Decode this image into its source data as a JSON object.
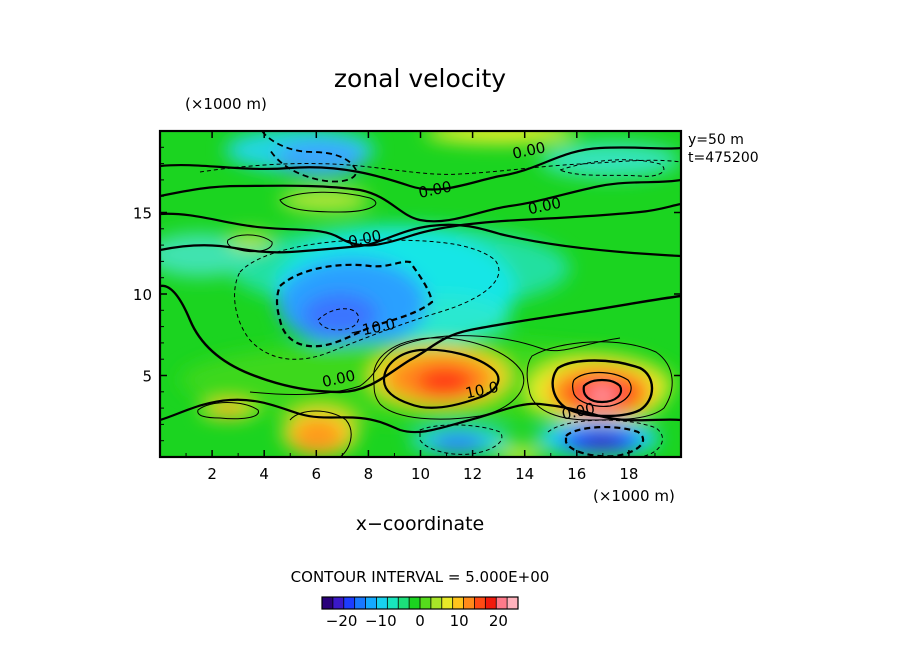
{
  "chart_data": {
    "type": "heatmap",
    "title": "zonal velocity",
    "xlabel": "x−coordinate",
    "x_unit_label": "(×1000 m)",
    "y_unit_label": "(×1000 m)",
    "xlim": [
      0,
      20
    ],
    "ylim": [
      0,
      20
    ],
    "x_ticks": [
      2,
      4,
      6,
      8,
      10,
      12,
      14,
      16,
      18
    ],
    "x_tick_labels": [
      "2",
      "4",
      "6",
      "8",
      "10",
      "12",
      "14",
      "16",
      "18"
    ],
    "y_ticks": [
      5,
      10,
      15
    ],
    "y_tick_labels": [
      "5",
      "10",
      "15"
    ],
    "info_lines": [
      "y=50 m",
      "t=475200"
    ],
    "contour_interval_text": "CONTOUR INTERVAL = 5.000E+00",
    "contour_labels": [
      {
        "text": "0.00",
        "x": 14.2,
        "y": 18.5
      },
      {
        "text": "0.00",
        "x": 10.6,
        "y": 16.1
      },
      {
        "text": "0.00",
        "x": 14.8,
        "y": 15.1
      },
      {
        "text": "0.00",
        "x": 7.9,
        "y": 13.1
      },
      {
        "text": "−10.0",
        "x": 8.2,
        "y": 7.6
      },
      {
        "text": "0.00",
        "x": 6.9,
        "y": 4.5
      },
      {
        "text": "10.0",
        "x": 12.4,
        "y": 3.8
      },
      {
        "text": "0.00",
        "x": 16.1,
        "y": 2.5
      }
    ],
    "features": [
      {
        "kind": "max",
        "x": 17.0,
        "y": 3.9,
        "value": 25
      },
      {
        "kind": "max",
        "x": 10.8,
        "y": 4.3,
        "value": 17
      },
      {
        "kind": "max",
        "x": 6.6,
        "y": 1.6,
        "value": 14
      },
      {
        "kind": "max",
        "x": 2.6,
        "y": 2.8,
        "value": 10
      },
      {
        "kind": "max",
        "x": 13.2,
        "y": 19.7,
        "value": 9
      },
      {
        "kind": "min",
        "x": 17.0,
        "y": 1.0,
        "value": -22
      },
      {
        "kind": "min",
        "x": 7.2,
        "y": 8.5,
        "value": -14
      },
      {
        "kind": "min",
        "x": 11.5,
        "y": 1.0,
        "value": -12
      },
      {
        "kind": "min",
        "x": 6.9,
        "y": 18.0,
        "value": -11
      }
    ],
    "colorbar": {
      "vmin": -25,
      "vmax": 25,
      "ticks": [
        -20,
        -10,
        0,
        10,
        20
      ],
      "tick_labels": [
        "−20",
        "−10",
        "0",
        "10",
        "20"
      ]
    },
    "colors": {
      "background": "#ffffff",
      "field_neutral": "#1bd420",
      "contour": "#000000"
    }
  }
}
